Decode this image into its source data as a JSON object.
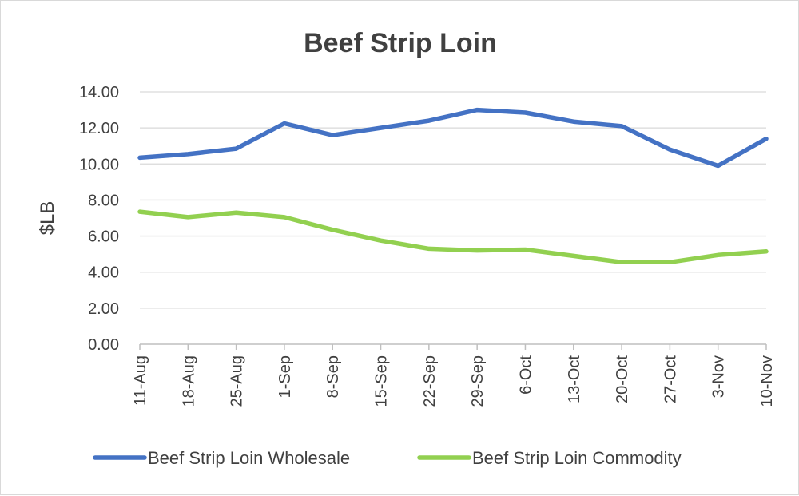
{
  "chart_data": {
    "type": "line",
    "title": "Beef Strip Loin",
    "ylabel": "$LB",
    "xlabel": "",
    "ylim": [
      0,
      14
    ],
    "yticks": [
      "0.00",
      "2.00",
      "4.00",
      "6.00",
      "8.00",
      "10.00",
      "12.00",
      "14.00"
    ],
    "categories": [
      "11-Aug",
      "18-Aug",
      "25-Aug",
      "1-Sep",
      "8-Sep",
      "15-Sep",
      "22-Sep",
      "29-Sep",
      "6-Oct",
      "13-Oct",
      "20-Oct",
      "27-Oct",
      "3-Nov",
      "10-Nov"
    ],
    "grid": true,
    "legend_position": "bottom",
    "series": [
      {
        "name": "Beef Strip Loin Wholesale",
        "color": "#4472C4",
        "values": [
          10.35,
          10.55,
          10.85,
          12.25,
          11.6,
          12.0,
          12.4,
          13.0,
          12.85,
          12.35,
          12.1,
          10.8,
          9.9,
          11.4
        ]
      },
      {
        "name": "Beef Strip Loin Commodity",
        "color": "#92D050",
        "values": [
          7.35,
          7.05,
          7.3,
          7.05,
          6.35,
          5.75,
          5.3,
          5.2,
          5.25,
          4.9,
          4.55,
          4.55,
          4.95,
          5.15
        ]
      }
    ]
  }
}
